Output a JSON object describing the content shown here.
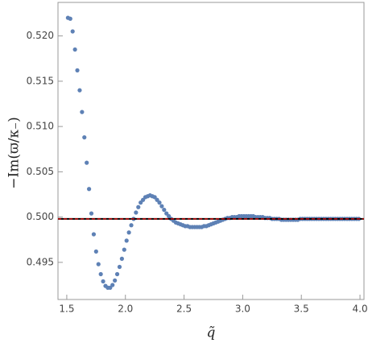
{
  "chart_data": {
    "type": "scatter",
    "xlabel": "q̃",
    "ylabel": "−Im(ϖ/κ₋)",
    "xlim": [
      1.425,
      4.034
    ],
    "ylim": [
      0.4909,
      0.5237
    ],
    "xticks": [
      1.5,
      {
        "value": 2.0,
        "label": "2.0"
      },
      2.5,
      {
        "value": 3.0,
        "label": "3.0"
      },
      3.5,
      {
        "value": 4.0,
        "label": "4.0"
      }
    ],
    "yticks": [
      {
        "value": 0.495,
        "label": "0.495"
      },
      {
        "value": 0.5,
        "label": "0.500"
      },
      {
        "value": 0.505,
        "label": "0.505"
      },
      {
        "value": 0.51,
        "label": "0.510"
      },
      {
        "value": 0.515,
        "label": "0.515"
      },
      {
        "value": 0.52,
        "label": "0.520"
      }
    ],
    "hline": 0.4998,
    "hline_color": "#000000",
    "hline_dash_color": "#e00000",
    "series": [
      {
        "color": "#5e81b5",
        "x": [
          1.51,
          1.53,
          1.55,
          1.57,
          1.59,
          1.61,
          1.63,
          1.65,
          1.67,
          1.69,
          1.71,
          1.73,
          1.75,
          1.77,
          1.79,
          1.81,
          1.83,
          1.85,
          1.87,
          1.89,
          1.91,
          1.93,
          1.95,
          1.97,
          1.99,
          2.01,
          2.03,
          2.05,
          2.07,
          2.09,
          2.11,
          2.13,
          2.15,
          2.17,
          2.19,
          2.21,
          2.23,
          2.25,
          2.27,
          2.29,
          2.31,
          2.33,
          2.35,
          2.37,
          2.39,
          2.41,
          2.43,
          2.45,
          2.47,
          2.49,
          2.51,
          2.53,
          2.55,
          2.57,
          2.59,
          2.61,
          2.63,
          2.65,
          2.67,
          2.69,
          2.71,
          2.73,
          2.75,
          2.77,
          2.79,
          2.81,
          2.83,
          2.85,
          2.87,
          2.89,
          2.91,
          2.93,
          2.95,
          2.97,
          2.99,
          3.01,
          3.03,
          3.05,
          3.07,
          3.09,
          3.11,
          3.13,
          3.15,
          3.17,
          3.19,
          3.21,
          3.23,
          3.25,
          3.27,
          3.29,
          3.31,
          3.33,
          3.35,
          3.37,
          3.39,
          3.41,
          3.43,
          3.45,
          3.47,
          3.49,
          3.51,
          3.53,
          3.55,
          3.57,
          3.59,
          3.61,
          3.63,
          3.65,
          3.67,
          3.69,
          3.71,
          3.73,
          3.75,
          3.77,
          3.79,
          3.81,
          3.83,
          3.85,
          3.87,
          3.89,
          3.91,
          3.93,
          3.95,
          3.97,
          3.99
        ],
        "values": [
          0.522,
          0.5219,
          0.5205,
          0.5185,
          0.5162,
          0.514,
          0.5116,
          0.5088,
          0.506,
          0.5031,
          0.5004,
          0.4981,
          0.4962,
          0.4948,
          0.4937,
          0.4929,
          0.4924,
          0.4922,
          0.4922,
          0.4925,
          0.493,
          0.4937,
          0.4945,
          0.4954,
          0.4964,
          0.4974,
          0.4983,
          0.4991,
          0.4998,
          0.5005,
          0.5011,
          0.5016,
          0.5019,
          0.5022,
          0.5023,
          0.5024,
          0.5023,
          0.5022,
          0.5019,
          0.5016,
          0.5012,
          0.5008,
          0.5004,
          0.5001,
          0.4998,
          0.4996,
          0.4994,
          0.4993,
          0.4992,
          0.4991,
          0.499,
          0.499,
          0.4989,
          0.4989,
          0.4989,
          0.4989,
          0.4989,
          0.4989,
          0.499,
          0.499,
          0.4991,
          0.4992,
          0.4993,
          0.4994,
          0.4995,
          0.4996,
          0.4997,
          0.4998,
          0.4999,
          0.4999,
          0.5,
          0.5,
          0.5,
          0.5001,
          0.5001,
          0.5001,
          0.5001,
          0.5001,
          0.5001,
          0.5001,
          0.5,
          0.5,
          0.5,
          0.5,
          0.4999,
          0.4999,
          0.4999,
          0.4998,
          0.4998,
          0.4998,
          0.4998,
          0.4997,
          0.4997,
          0.4997,
          0.4997,
          0.4997,
          0.4997,
          0.4997,
          0.4997,
          0.4998,
          0.4998,
          0.4998,
          0.4998,
          0.4998,
          0.4998,
          0.4998,
          0.4998,
          0.4998,
          0.4998,
          0.4998,
          0.4998,
          0.4998,
          0.4998,
          0.4998,
          0.4998,
          0.4998,
          0.4998,
          0.4998,
          0.4998,
          0.4998,
          0.4998,
          0.4998,
          0.4998,
          0.4998,
          0.4998
        ]
      }
    ]
  }
}
